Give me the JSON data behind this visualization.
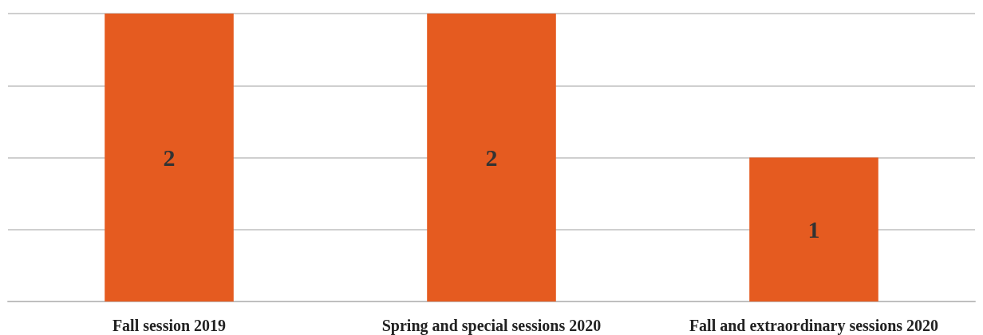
{
  "chart_data": {
    "type": "bar",
    "categories": [
      "Fall session 2019",
      "Spring and special sessions 2020",
      "Fall and extraordinary sessions 2020"
    ],
    "values": [
      2,
      2,
      1
    ],
    "color": "#e55b20",
    "ylim": [
      0,
      2
    ],
    "yticks": [
      {
        "value": 0,
        "label": null
      },
      {
        "value": 0.5,
        "label": null
      },
      {
        "value": 1,
        "label": null
      },
      {
        "value": 1.5,
        "label": null
      },
      {
        "value": 2,
        "label": null
      }
    ],
    "grid": "y",
    "data_labels": true,
    "tick_labels": "x"
  }
}
